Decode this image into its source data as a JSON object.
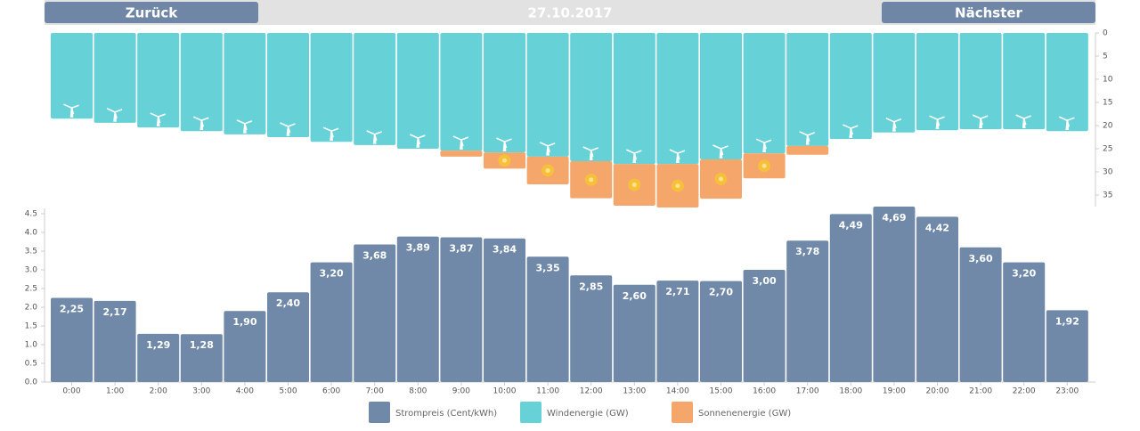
{
  "header": {
    "back": "Zurück",
    "date": "27.10.2017",
    "next": "Nächster"
  },
  "chart_data": [
    {
      "type": "stacked-bar-inverted",
      "series": [
        {
          "name": "Windenergie (GW)",
          "color": "#66d1d6",
          "values": [
            18.5,
            19.4,
            20.4,
            21.2,
            21.9,
            22.5,
            23.5,
            24.2,
            25,
            25.4,
            25.8,
            26.7,
            27.7,
            28.3,
            28.3,
            27.3,
            26,
            24.4,
            22.9,
            21.5,
            21,
            20.8,
            20.8,
            21.2
          ]
        },
        {
          "name": "Sonnenenergie (GW)",
          "color": "#f4a66b",
          "values": [
            0,
            0,
            0,
            0,
            0,
            0,
            0,
            0,
            0,
            1.3,
            3.5,
            6,
            8,
            9,
            9.4,
            8.5,
            5.4,
            1.9,
            0,
            0,
            0,
            0,
            0,
            0
          ]
        }
      ],
      "ylim": [
        0,
        37.5
      ],
      "yticks": [
        0,
        5,
        10,
        15,
        20,
        25,
        30,
        35
      ]
    },
    {
      "type": "bar",
      "categories": [
        "0:00",
        "1:00",
        "2:00",
        "3:00",
        "4:00",
        "5:00",
        "6:00",
        "7:00",
        "8:00",
        "9:00",
        "10:00",
        "11:00",
        "12:00",
        "13:00",
        "14:00",
        "15:00",
        "16:00",
        "17:00",
        "18:00",
        "19:00",
        "20:00",
        "21:00",
        "22:00",
        "23:00"
      ],
      "series": [
        {
          "name": "Strompreis (Cent/kWh)",
          "color": "#7089a9",
          "values": [
            2.25,
            2.17,
            1.29,
            1.28,
            1.9,
            2.4,
            3.2,
            3.68,
            3.89,
            3.87,
            3.84,
            3.35,
            2.85,
            2.6,
            2.71,
            2.7,
            3.0,
            3.78,
            4.49,
            4.69,
            4.42,
            3.6,
            3.2,
            1.92
          ],
          "value_labels": [
            "2,25",
            "2,17",
            "1,29",
            "1,28",
            "1,90",
            "2,40",
            "3,20",
            "3,68",
            "3,89",
            "3,87",
            "3,84",
            "3,35",
            "2,85",
            "2,60",
            "2,71",
            "2,70",
            "3,00",
            "3,78",
            "4,49",
            "4,69",
            "4,42",
            "3,60",
            "3,20",
            "1,92"
          ]
        }
      ],
      "ylim": [
        0,
        4.7
      ],
      "yticks": [
        {
          "value": 0,
          "label": "0.0"
        },
        0.5,
        {
          "value": 1,
          "label": "1.0"
        },
        1.5,
        {
          "value": 2,
          "label": "2.0"
        },
        2.5,
        {
          "value": 3,
          "label": "3.0"
        },
        3.5,
        {
          "value": 4,
          "label": "4.0"
        },
        4.5
      ]
    }
  ]
}
